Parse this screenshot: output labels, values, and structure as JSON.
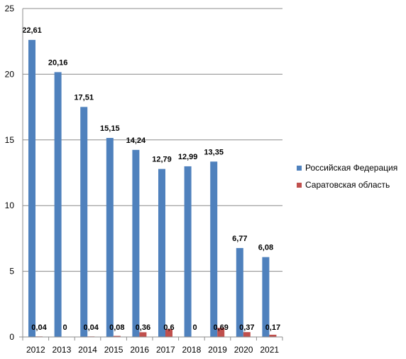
{
  "chart_data": {
    "type": "bar",
    "categories": [
      "2012",
      "2013",
      "2014",
      "2015",
      "2016",
      "2017",
      "2018",
      "2019",
      "2020",
      "2021"
    ],
    "series": [
      {
        "name": "Российская Федерация",
        "color": "#4f81bd",
        "values": [
          22.61,
          20.16,
          17.51,
          15.15,
          14.24,
          12.79,
          12.99,
          13.35,
          6.77,
          6.08
        ],
        "labels": [
          "22,61",
          "20,16",
          "17,51",
          "15,15",
          "14,24",
          "12,79",
          "12,99",
          "13,35",
          "6,77",
          "6,08"
        ]
      },
      {
        "name": "Саратовская область",
        "color": "#c0504d",
        "values": [
          0.04,
          0,
          0.04,
          0.08,
          0.36,
          0.6,
          0,
          0.69,
          0.37,
          0.17
        ],
        "labels": [
          "0,04",
          "0",
          "0,04",
          "0,08",
          "0,36",
          "0,6",
          "0",
          "0,69",
          "0,37",
          "0,17"
        ]
      }
    ],
    "ylim": [
      0,
      25
    ],
    "yticks": [
      0,
      5,
      10,
      15,
      20,
      25
    ],
    "grid": true,
    "legend_position": "right"
  }
}
